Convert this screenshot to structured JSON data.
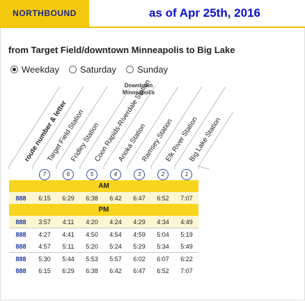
{
  "header": {
    "direction_tab": "NORTHBOUND",
    "as_of": "as of Apr 25th, 2016"
  },
  "subtitle": "from Target Field/downtown Minneapolis to Big Lake",
  "radios": [
    {
      "label": "Weekday",
      "selected": true
    },
    {
      "label": "Saturday",
      "selected": false
    },
    {
      "label": "Sunday",
      "selected": false
    }
  ],
  "direction_label": "Downtown Minneapolis",
  "columns": {
    "route": "route number & letter",
    "stations": [
      {
        "name": "Target Field Station",
        "num": "7"
      },
      {
        "name": "Fridley Station",
        "num": "6"
      },
      {
        "name": "Coon Rapids-Riverdale Station",
        "num": "5"
      },
      {
        "name": "Anoka Station",
        "num": "4"
      },
      {
        "name": "Ramsey Station",
        "num": "3"
      },
      {
        "name": "Elk River Station",
        "num": "2"
      },
      {
        "name": "Big Lake Station",
        "num": "1"
      }
    ]
  },
  "am_label": "AM",
  "pm_label": "PM",
  "am_trips": [
    {
      "route": "888",
      "times": [
        "6:15",
        "6:29",
        "6:38",
        "6:42",
        "6:47",
        "6:52",
        "7:07"
      ]
    }
  ],
  "pm_trips": [
    {
      "route": "888",
      "times": [
        "3:57",
        "4:11",
        "4:20",
        "4:24",
        "4:29",
        "4:34",
        "4:49"
      ]
    },
    {
      "route": "888",
      "times": [
        "4:27",
        "4:41",
        "4:50",
        "4:54",
        "4:59",
        "5:04",
        "5:19"
      ]
    },
    {
      "route": "888",
      "times": [
        "4:57",
        "5:11",
        "5:20",
        "5:24",
        "5:29",
        "5:34",
        "5:49"
      ]
    },
    {
      "route": "888",
      "times": [
        "5:30",
        "5:44",
        "5:53",
        "5:57",
        "6:02",
        "6:07",
        "6:22"
      ]
    },
    {
      "route": "888",
      "times": [
        "6:15",
        "6:29",
        "6:38",
        "6:42",
        "6:47",
        "6:52",
        "7:07"
      ]
    }
  ],
  "colors": {
    "accent": "#f5c810",
    "route_blue": "#1a3aa0",
    "asof_blue": "#0a10c8"
  }
}
